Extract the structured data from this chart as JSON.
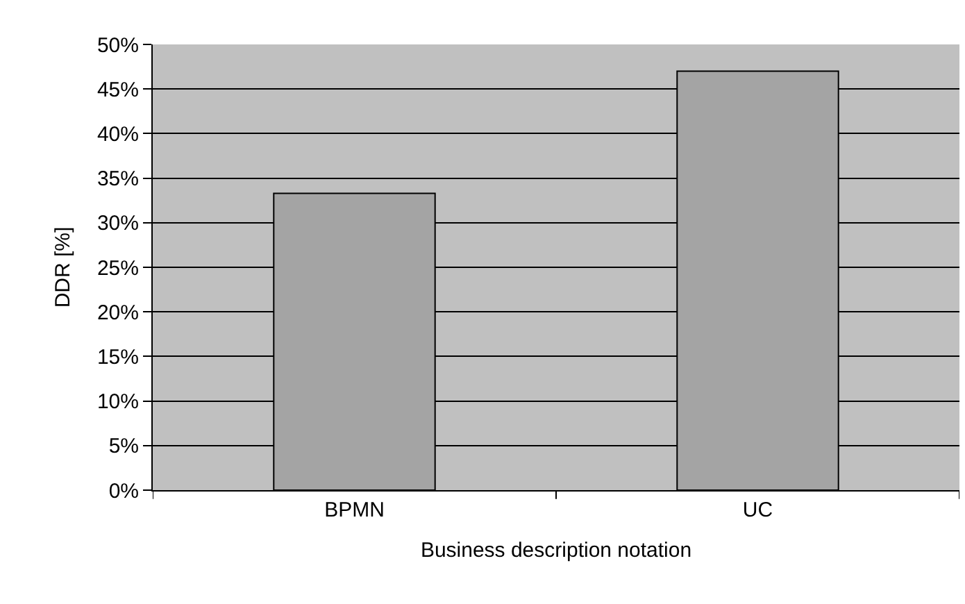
{
  "chart_data": {
    "type": "bar",
    "categories": [
      "BPMN",
      "UC"
    ],
    "values": [
      33.3,
      47
    ],
    "color": "#a4a4a4",
    "xlabel": "Business description notation",
    "ylabel": "DDR [%]",
    "ylim": [
      0,
      50
    ],
    "yticks": [
      {
        "value": 0,
        "label": "0%"
      },
      {
        "value": 5,
        "label": "5%"
      },
      {
        "value": 10,
        "label": "10%"
      },
      {
        "value": 15,
        "label": "15%"
      },
      {
        "value": 20,
        "label": "20%"
      },
      {
        "value": 25,
        "label": "25%"
      },
      {
        "value": 30,
        "label": "30%"
      },
      {
        "value": 35,
        "label": "35%"
      },
      {
        "value": 40,
        "label": "40%"
      },
      {
        "value": 45,
        "label": "45%"
      },
      {
        "value": 50,
        "label": "50%"
      }
    ],
    "grid": "y"
  }
}
